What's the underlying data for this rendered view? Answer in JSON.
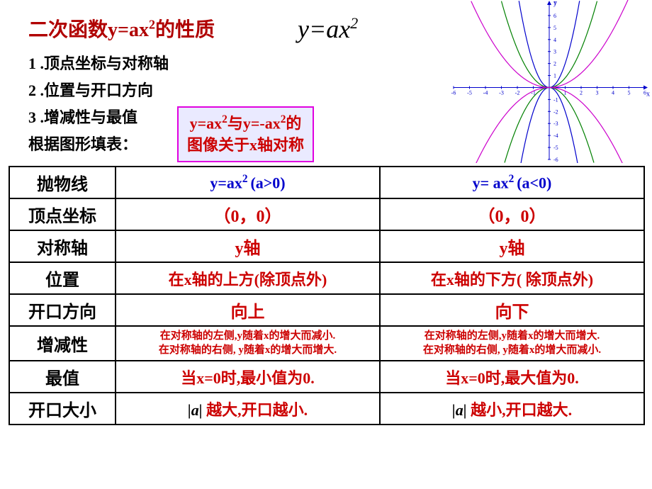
{
  "title_main": "二次函数y=ax",
  "title_sup": "2",
  "title_suffix": "的性质",
  "formula_text": "y=ax",
  "formula_sup": "2",
  "list1": "1 .顶点坐标与对称轴",
  "list2": "2 .位置与开口方向",
  "list3": "3 .增减性与最值",
  "list4": "根据图形填表：",
  "note_line1_a": "y=ax",
  "note_line1_b": "与y=-ax",
  "note_line1_c": "的",
  "note_line2": "图像关于x轴对称",
  "graph": {
    "x_range": [
      -6,
      6
    ],
    "y_range": [
      -6,
      7
    ],
    "x_ticks": [
      -6,
      -5,
      -4,
      -3,
      -2,
      -1,
      1,
      2,
      3,
      4,
      5,
      6
    ],
    "y_ticks": [
      -6,
      -5,
      -4,
      -3,
      -2,
      -1,
      1,
      2,
      3,
      4,
      5,
      6,
      7
    ],
    "curves": [
      {
        "a": 2.0,
        "color": "#0000cc"
      },
      {
        "a": 0.8,
        "color": "#008000"
      },
      {
        "a": 0.3,
        "color": "#cc00cc"
      },
      {
        "a": -2.0,
        "color": "#0000cc"
      },
      {
        "a": -0.8,
        "color": "#008000"
      },
      {
        "a": -0.3,
        "color": "#cc00cc"
      }
    ],
    "axis_color": "#0000cc",
    "tick_color": "#0000cc",
    "tick_fontsize": 8
  },
  "table": {
    "row_labels": [
      "抛物线",
      "顶点坐标",
      "对称轴",
      "位置",
      "开口方向",
      "增减性",
      "最值",
      "开口大小"
    ],
    "colA_header_a": "y=ax",
    "colA_header_b": " (a>0)",
    "colB_header_a": "y= ax",
    "colB_header_b": " (a<0)",
    "vertex_a": "（0，0）",
    "vertex_b": "（0，0）",
    "axis_a": "y轴",
    "axis_b": "y轴",
    "pos_a": "在x轴的上方(除顶点外)",
    "pos_b": "在x轴的下方( 除顶点外)",
    "open_a": "向上",
    "open_b": "向下",
    "mono_a1": "在对称轴的左侧,y随着x的增大而减小.",
    "mono_a2": "在对称轴的右侧, y随着x的增大而增大.",
    "mono_b1": "在对称轴的左侧,y随着x的增大而增大.",
    "mono_b2": "在对称轴的右侧, y随着x的增大而减小.",
    "max_a": "当x=0时,最小值为0.",
    "max_b": "当x=0时,最大值为0.",
    "size_a1": "|a|",
    "size_a2": " 越大,开口越小.",
    "size_b1": "|a|",
    "size_b2": " 越小,开口越大."
  },
  "colors": {
    "title_red": "#b00000",
    "text_red": "#cc0000",
    "text_blue": "#0000cc",
    "note_border": "#e000e0",
    "note_bg": "#eaeaff"
  }
}
